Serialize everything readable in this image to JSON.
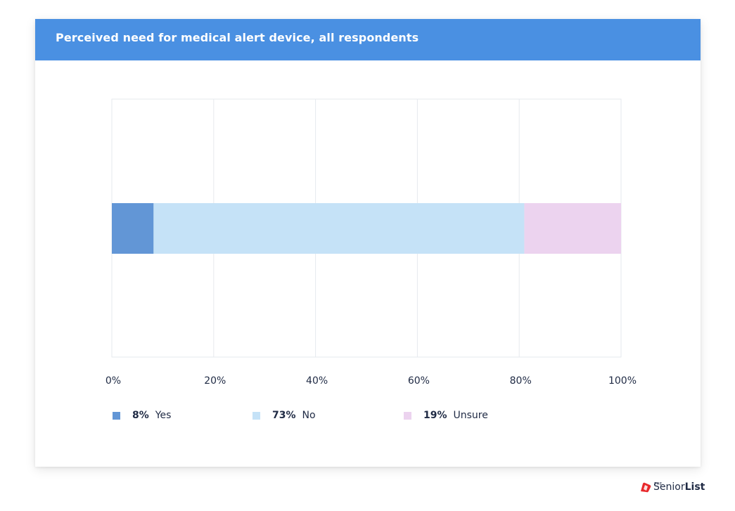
{
  "card": {
    "title": "Perceived need for medical alert device, all respondents"
  },
  "chart_data": {
    "type": "bar",
    "orientation": "horizontal",
    "stacked": true,
    "title": "Perceived need for medical alert device, all respondents",
    "xlabel": "",
    "ylabel": "",
    "xlim": [
      0,
      100
    ],
    "x_ticks": [
      "0%",
      "20%",
      "40%",
      "60%",
      "80%",
      "100%"
    ],
    "grid": true,
    "legend_position": "bottom",
    "series": [
      {
        "name": "Yes",
        "pct_label": "8%",
        "value": 8.2,
        "color": "#6296D6"
      },
      {
        "name": "No",
        "pct_label": "73%",
        "value": 72.8,
        "color": "#C5E2F7"
      },
      {
        "name": "Unsure",
        "pct_label": "19%",
        "value": 19.0,
        "color": "#ECD3EF"
      }
    ]
  },
  "colors": {
    "header": "#4A90E2",
    "grid": "#E6E9EE",
    "text": "#1F2A44",
    "logo_red": "#E8282B"
  },
  "logo": {
    "the": "THE",
    "senior": "Senior",
    "list": "List"
  }
}
